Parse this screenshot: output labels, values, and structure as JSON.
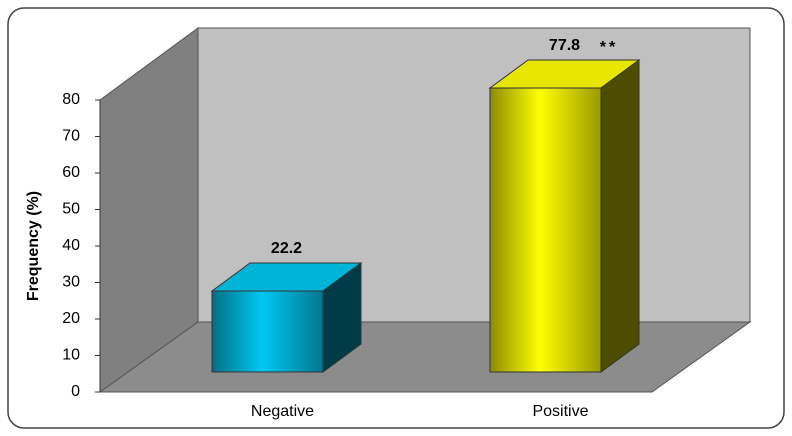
{
  "chart_data": {
    "type": "bar3d",
    "ylabel": "Frequency (%)",
    "categories": [
      "Negative",
      "Positive"
    ],
    "values": [
      22.2,
      77.8
    ],
    "colors": [
      "#00c8f0",
      "#ffff00"
    ],
    "annotation": "**",
    "ylim": [
      0,
      80
    ],
    "yticks": [
      0,
      10,
      20,
      30,
      40,
      50,
      60,
      70,
      80
    ],
    "grid": false
  }
}
